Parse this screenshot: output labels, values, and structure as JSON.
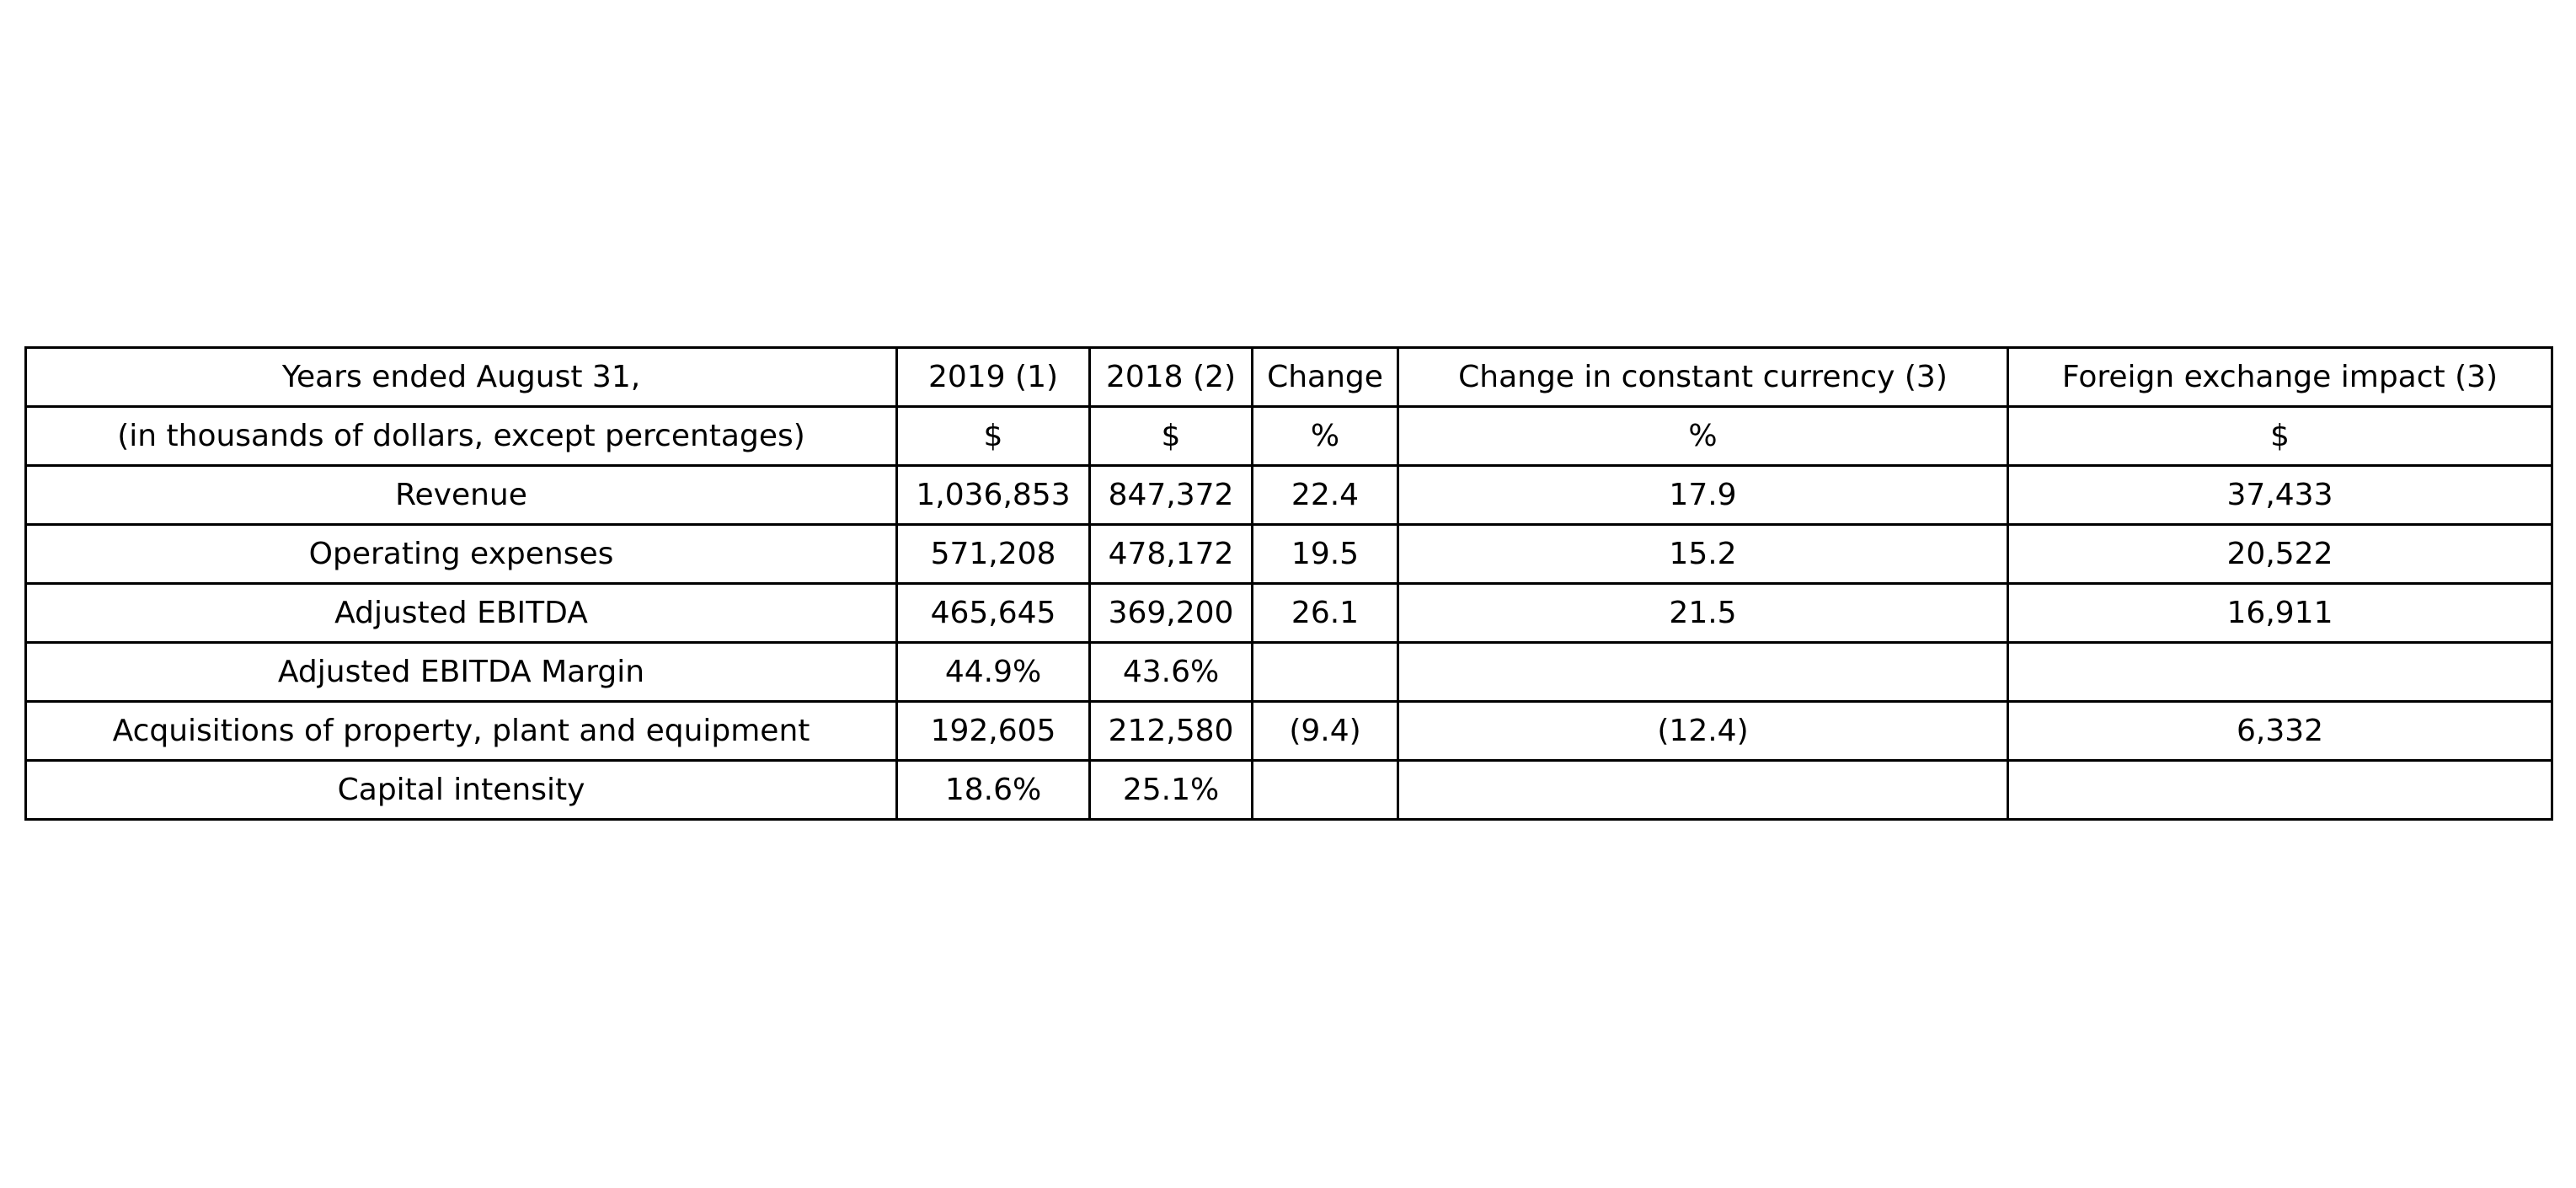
{
  "chart_data": {
    "type": "table",
    "header_rows": [
      [
        "Years ended August 31,",
        "2019 (1)",
        "2018 (2)",
        "Change",
        "Change in constant currency (3)",
        "Foreign exchange impact (3)"
      ],
      [
        "(in thousands of dollars, except percentages)",
        "$",
        "$",
        "%",
        "%",
        "$"
      ]
    ],
    "rows": [
      [
        "Revenue",
        "1,036,853",
        "847,372",
        "22.4",
        "17.9",
        "37,433"
      ],
      [
        "Operating expenses",
        "571,208",
        "478,172",
        "19.5",
        "15.2",
        "20,522"
      ],
      [
        "Adjusted EBITDA",
        "465,645",
        "369,200",
        "26.1",
        "21.5",
        "16,911"
      ],
      [
        "Adjusted EBITDA Margin",
        "44.9%",
        "43.6%",
        "",
        "",
        ""
      ],
      [
        "Acquisitions of property, plant and equipment",
        "192,605",
        "212,580",
        "(9.4)",
        "(12.4)",
        "6,332"
      ],
      [
        "Capital intensity",
        "18.6%",
        "25.1%",
        "",
        "",
        ""
      ]
    ]
  }
}
